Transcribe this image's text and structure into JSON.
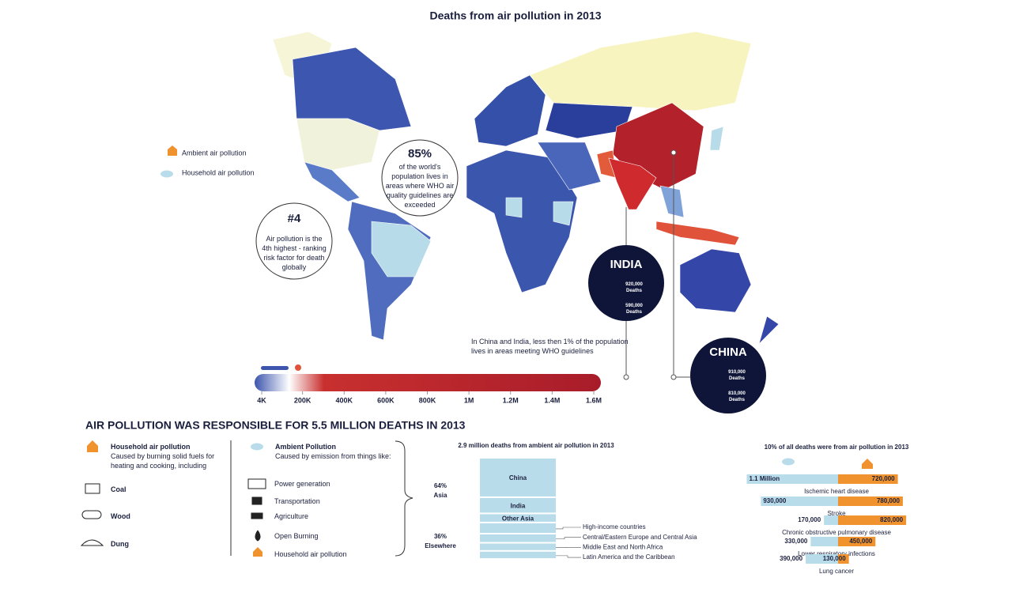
{
  "title": "Deaths from air pollution in 2013",
  "legend": {
    "ambient": "Ambient air pollution",
    "household": "Household air pollution"
  },
  "callouts": [
    {
      "headline": "85%",
      "text": "of the world's population lives in areas where WHO air quality guidelines are exceeded"
    },
    {
      "headline": "#4",
      "text": "Air pollution is the 4th highest - ranking risk factor for death globally"
    }
  ],
  "countries": [
    {
      "name": "INDIA",
      "rows": [
        {
          "value": "920,000",
          "unit": "Deaths"
        },
        {
          "value": "590,000",
          "unit": "Deaths"
        }
      ]
    },
    {
      "name": "CHINA",
      "rows": [
        {
          "value": "910,000",
          "unit": "Deaths"
        },
        {
          "value": "810,000",
          "unit": "Deaths"
        }
      ]
    }
  ],
  "note": "In China and India, less then 1% of the population lives in areas meeting WHO guidelines",
  "scale": {
    "xlim": [
      0,
      1600000
    ],
    "xticks": [
      {
        "value": 4000,
        "label": "4K"
      },
      {
        "value": 200000,
        "label": "200K"
      },
      {
        "value": 400000,
        "label": "400K"
      },
      {
        "value": 600000,
        "label": "600K"
      },
      {
        "value": 800000,
        "label": "800K"
      },
      {
        "value": 1000000,
        "label": "1M"
      },
      {
        "value": 1200000,
        "label": "1.2M"
      },
      {
        "value": 1400000,
        "label": "1.4M"
      },
      {
        "value": 1600000,
        "label": "1.6M"
      }
    ]
  },
  "section_title": "AIR POLLUTION WAS RESPONSIBLE FOR 5.5 MILLION DEATHS IN 2013",
  "household": {
    "title": "Household air pollution",
    "subtitle": "Caused by burning solid fuels for heating and cooking, including",
    "items": [
      "Coal",
      "Wood",
      "Dung"
    ]
  },
  "ambient": {
    "title": "Ambient Pollution",
    "subtitle": "Caused by emission from things like:",
    "items": [
      "Power generation",
      "Transportation",
      "Agriculture",
      "Open Burning",
      "Household air pollution"
    ]
  },
  "chart_data": [
    {
      "type": "stacked-bar",
      "title": "2.9 million deaths from ambient air pollution in 2013",
      "segments": [
        {
          "name": "China",
          "value": 39
        },
        {
          "name": "India",
          "value": 16
        },
        {
          "name": "Other Asia",
          "value": 9
        },
        {
          "name": "High-income countries",
          "value": 11
        },
        {
          "name": "Central/Eastern Europe and Central Asia",
          "value": 9
        },
        {
          "name": "Middle East and North Africa",
          "value": 8
        },
        {
          "name": "Latin America and the Caribbean",
          "value": 8
        }
      ],
      "groups": [
        {
          "value": 64,
          "label": "64%",
          "name": "Asia"
        },
        {
          "value": 36,
          "label": "36%",
          "name": "Elsewhere"
        }
      ],
      "color": "#b9dcea"
    },
    {
      "type": "butterfly",
      "title": "10% of all deaths were from air pollution in 2013",
      "categories": [
        "Ischemic heart disease",
        "Stroke",
        "Chronic obstructive pulmonary disease",
        "Lower respiratory infections",
        "Lung cancer"
      ],
      "series": [
        {
          "color": "#b9dcea",
          "values": [
            1100000,
            930000,
            170000,
            330000,
            390000
          ],
          "value_labels": [
            "1.1 Million",
            "930,000",
            "170,000",
            "330,000",
            "390,000"
          ]
        },
        {
          "color": "#f0922e",
          "values": [
            720000,
            780000,
            820000,
            450000,
            130000
          ],
          "value_labels": [
            "720,000",
            "780,000",
            "820,000",
            "450,000",
            "130,000"
          ]
        }
      ]
    }
  ]
}
